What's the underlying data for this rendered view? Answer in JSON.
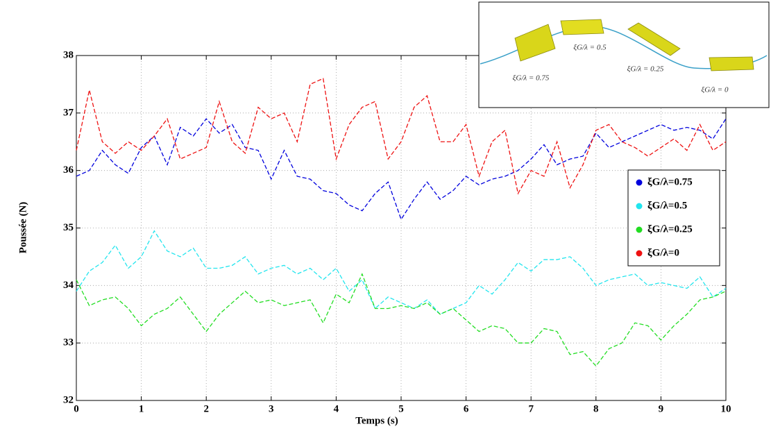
{
  "chart_data": {
    "type": "line",
    "x_label": "Temps (s)",
    "y_label": "Poussée (N)",
    "xlim": [
      0,
      10
    ],
    "ylim": [
      32,
      38
    ],
    "xticks": [
      0,
      1,
      2,
      3,
      4,
      5,
      6,
      7,
      8,
      9,
      10
    ],
    "yticks": [
      32,
      33,
      34,
      35,
      36,
      37,
      38
    ],
    "grid": true,
    "legend": "right",
    "line_style": "dashed",
    "annotations": [
      "ξG/λ = 0.75",
      "ξG/λ = 0.5",
      "ξG/λ = 0.25",
      "ξG/λ = 0"
    ],
    "x": [
      0,
      0.2,
      0.4,
      0.6,
      0.8,
      1,
      1.2,
      1.4,
      1.6,
      1.8,
      2,
      2.2,
      2.4,
      2.6,
      2.8,
      3,
      3.2,
      3.4,
      3.6,
      3.8,
      4,
      4.2,
      4.4,
      4.6,
      4.8,
      5,
      5.2,
      5.4,
      5.6,
      5.8,
      6,
      6.2,
      6.4,
      6.6,
      6.8,
      7,
      7.2,
      7.4,
      7.6,
      7.8,
      8,
      8.2,
      8.4,
      8.6,
      8.8,
      9,
      9.2,
      9.4,
      9.6,
      9.8,
      10
    ],
    "series": [
      {
        "name": "ξG/λ=0.75",
        "color": "#0000dd",
        "values": [
          35.9,
          36.0,
          36.35,
          36.1,
          35.95,
          36.4,
          36.6,
          36.1,
          36.75,
          36.6,
          36.9,
          36.65,
          36.8,
          36.4,
          36.35,
          35.85,
          36.35,
          35.9,
          35.85,
          35.65,
          35.6,
          35.4,
          35.3,
          35.6,
          35.8,
          35.15,
          35.5,
          35.8,
          35.5,
          35.65,
          35.9,
          35.75,
          35.85,
          35.9,
          36.0,
          36.2,
          36.45,
          36.1,
          36.2,
          36.25,
          36.65,
          36.4,
          36.5,
          36.6,
          36.7,
          36.8,
          36.7,
          36.75,
          36.7,
          36.55,
          36.9
        ]
      },
      {
        "name": "ξG/λ=0.5",
        "color": "#22e5ee",
        "values": [
          33.9,
          34.25,
          34.4,
          34.7,
          34.3,
          34.5,
          34.95,
          34.6,
          34.5,
          34.65,
          34.3,
          34.3,
          34.35,
          34.5,
          34.2,
          34.3,
          34.35,
          34.2,
          34.3,
          34.1,
          34.3,
          33.9,
          34.1,
          33.6,
          33.8,
          33.7,
          33.6,
          33.75,
          33.5,
          33.6,
          33.7,
          34.0,
          33.85,
          34.1,
          34.4,
          34.25,
          34.45,
          34.45,
          34.5,
          34.3,
          34.0,
          34.1,
          34.15,
          34.2,
          34.0,
          34.05,
          34.0,
          33.95,
          34.15,
          33.8,
          33.95
        ]
      },
      {
        "name": "ξG/λ=0.25",
        "color": "#22dd22",
        "values": [
          34.1,
          33.65,
          33.75,
          33.8,
          33.6,
          33.3,
          33.5,
          33.6,
          33.8,
          33.5,
          33.2,
          33.5,
          33.7,
          33.9,
          33.7,
          33.75,
          33.65,
          33.7,
          33.75,
          33.35,
          33.85,
          33.7,
          34.2,
          33.6,
          33.6,
          33.65,
          33.6,
          33.7,
          33.5,
          33.6,
          33.4,
          33.2,
          33.3,
          33.25,
          33.0,
          33.0,
          33.25,
          33.2,
          32.8,
          32.85,
          32.6,
          32.9,
          33.0,
          33.35,
          33.3,
          33.05,
          33.3,
          33.5,
          33.75,
          33.8,
          33.9
        ]
      },
      {
        "name": "ξG/λ=0",
        "color": "#ee1111",
        "values": [
          36.35,
          37.4,
          36.5,
          36.3,
          36.5,
          36.35,
          36.6,
          36.9,
          36.2,
          36.3,
          36.4,
          37.2,
          36.5,
          36.3,
          37.1,
          36.9,
          37.0,
          36.5,
          37.5,
          37.6,
          36.2,
          36.8,
          37.1,
          37.2,
          36.2,
          36.5,
          37.1,
          37.3,
          36.5,
          36.5,
          36.8,
          35.9,
          36.5,
          36.7,
          35.6,
          36.0,
          35.9,
          36.5,
          35.7,
          36.1,
          36.7,
          36.8,
          36.5,
          36.4,
          36.25,
          36.4,
          36.55,
          36.35,
          36.8,
          36.35,
          36.5
        ]
      }
    ]
  }
}
